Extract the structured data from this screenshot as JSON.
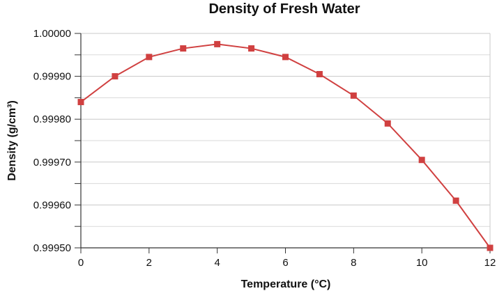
{
  "chart_data": {
    "type": "line",
    "title": "Density of Fresh Water",
    "xlabel": "Temperature (°C)",
    "ylabel": "Density (g/cm³)",
    "xlim": [
      0,
      12
    ],
    "ylim": [
      0.9995,
      1.0
    ],
    "xticks": [
      "0",
      "2",
      "4",
      "6",
      "8",
      "10",
      "12"
    ],
    "yticks": [
      "0.99950",
      "0.99960",
      "0.99970",
      "0.99980",
      "0.99990",
      "1.00000"
    ],
    "grid": true,
    "marker": "square",
    "color": "#d04040",
    "x": [
      0,
      1,
      2,
      3,
      4,
      5,
      6,
      7,
      8,
      9,
      10,
      11,
      12
    ],
    "y": [
      0.99984,
      0.9999,
      0.999945,
      0.999965,
      0.999975,
      0.999965,
      0.999945,
      0.999905,
      0.999855,
      0.99979,
      0.999705,
      0.99961,
      0.9995
    ]
  }
}
